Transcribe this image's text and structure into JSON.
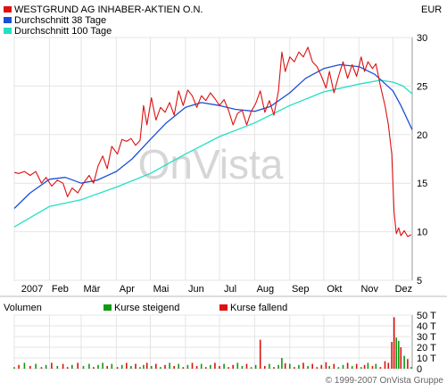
{
  "chart_data": [
    {
      "type": "line",
      "currency": "EUR",
      "x_range": [
        "2007-01-01",
        "2007-12-18"
      ],
      "x_tick_labels": [
        "2007",
        "Feb",
        "Mär",
        "Apr",
        "Mai",
        "Jun",
        "Jul",
        "Aug",
        "Sep",
        "Okt",
        "Nov",
        "Dez"
      ],
      "x_tick_dates": [
        "2007-01-01",
        "2007-02-01",
        "2007-03-01",
        "2007-04-01",
        "2007-05-01",
        "2007-06-01",
        "2007-07-01",
        "2007-08-01",
        "2007-09-01",
        "2007-10-01",
        "2007-11-01",
        "2007-12-01"
      ],
      "ylim": [
        5,
        30
      ],
      "y_ticks": [
        5,
        10,
        15,
        20,
        25,
        30
      ],
      "y_axis_side": "right",
      "grid": true,
      "legend_position": "top-left",
      "series": [
        {
          "name": "WESTGRUND AG INHABER-AKTIEN O.N.",
          "color": "#dd1111",
          "points": [
            [
              "2007-01-01",
              16.1
            ],
            [
              "2007-01-05",
              16.0
            ],
            [
              "2007-01-10",
              16.2
            ],
            [
              "2007-01-15",
              15.8
            ],
            [
              "2007-01-20",
              16.2
            ],
            [
              "2007-01-25",
              15.0
            ],
            [
              "2007-01-29",
              15.6
            ],
            [
              "2007-02-03",
              14.7
            ],
            [
              "2007-02-08",
              15.3
            ],
            [
              "2007-02-13",
              15.0
            ],
            [
              "2007-02-17",
              13.6
            ],
            [
              "2007-02-21",
              14.5
            ],
            [
              "2007-02-26",
              14.0
            ],
            [
              "2007-03-03",
              15.0
            ],
            [
              "2007-03-08",
              15.8
            ],
            [
              "2007-03-12",
              15.0
            ],
            [
              "2007-03-16",
              16.8
            ],
            [
              "2007-03-20",
              17.8
            ],
            [
              "2007-03-24",
              16.5
            ],
            [
              "2007-03-28",
              18.8
            ],
            [
              "2007-04-02",
              18.0
            ],
            [
              "2007-04-06",
              19.5
            ],
            [
              "2007-04-10",
              19.3
            ],
            [
              "2007-04-14",
              19.6
            ],
            [
              "2007-04-18",
              18.9
            ],
            [
              "2007-04-22",
              19.4
            ],
            [
              "2007-04-25",
              23.0
            ],
            [
              "2007-04-28",
              21.0
            ],
            [
              "2007-05-02",
              23.8
            ],
            [
              "2007-05-06",
              21.5
            ],
            [
              "2007-05-10",
              22.8
            ],
            [
              "2007-05-14",
              22.3
            ],
            [
              "2007-05-18",
              23.3
            ],
            [
              "2007-05-22",
              22.0
            ],
            [
              "2007-05-26",
              24.5
            ],
            [
              "2007-05-30",
              23.0
            ],
            [
              "2007-06-03",
              24.6
            ],
            [
              "2007-06-07",
              24.0
            ],
            [
              "2007-06-11",
              22.8
            ],
            [
              "2007-06-15",
              24.0
            ],
            [
              "2007-06-19",
              23.5
            ],
            [
              "2007-06-23",
              24.3
            ],
            [
              "2007-06-27",
              23.7
            ],
            [
              "2007-07-01",
              23.0
            ],
            [
              "2007-07-05",
              23.6
            ],
            [
              "2007-07-09",
              22.5
            ],
            [
              "2007-07-13",
              21.0
            ],
            [
              "2007-07-17",
              22.2
            ],
            [
              "2007-07-21",
              22.5
            ],
            [
              "2007-07-25",
              21.0
            ],
            [
              "2007-07-29",
              22.4
            ],
            [
              "2007-08-02",
              23.2
            ],
            [
              "2007-08-06",
              24.5
            ],
            [
              "2007-08-10",
              22.3
            ],
            [
              "2007-08-14",
              23.5
            ],
            [
              "2007-08-18",
              22.0
            ],
            [
              "2007-08-22",
              24.5
            ],
            [
              "2007-08-25",
              28.5
            ],
            [
              "2007-08-28",
              26.5
            ],
            [
              "2007-09-01",
              28.0
            ],
            [
              "2007-09-05",
              27.5
            ],
            [
              "2007-09-09",
              28.5
            ],
            [
              "2007-09-13",
              28.0
            ],
            [
              "2007-09-17",
              29.0
            ],
            [
              "2007-09-21",
              27.5
            ],
            [
              "2007-09-25",
              27.0
            ],
            [
              "2007-09-29",
              26.0
            ],
            [
              "2007-10-03",
              24.8
            ],
            [
              "2007-10-06",
              26.5
            ],
            [
              "2007-10-10",
              24.3
            ],
            [
              "2007-10-14",
              26.0
            ],
            [
              "2007-10-18",
              27.5
            ],
            [
              "2007-10-22",
              25.8
            ],
            [
              "2007-10-26",
              27.2
            ],
            [
              "2007-10-30",
              26.0
            ],
            [
              "2007-11-03",
              28.0
            ],
            [
              "2007-11-06",
              26.5
            ],
            [
              "2007-11-09",
              27.5
            ],
            [
              "2007-11-13",
              26.8
            ],
            [
              "2007-11-16",
              27.3
            ],
            [
              "2007-11-20",
              25.0
            ],
            [
              "2007-11-24",
              23.0
            ],
            [
              "2007-11-27",
              21.0
            ],
            [
              "2007-11-30",
              18.0
            ],
            [
              "2007-12-02",
              12.0
            ],
            [
              "2007-12-04",
              9.8
            ],
            [
              "2007-12-06",
              10.4
            ],
            [
              "2007-12-08",
              9.6
            ],
            [
              "2007-12-11",
              10.1
            ],
            [
              "2007-12-14",
              9.5
            ],
            [
              "2007-12-17",
              9.7
            ]
          ]
        },
        {
          "name": "Durchschnitt 38 Tage",
          "color": "#1a4fd8",
          "points": [
            [
              "2007-01-01",
              12.4
            ],
            [
              "2007-01-15",
              14.0
            ],
            [
              "2007-02-01",
              15.4
            ],
            [
              "2007-02-15",
              15.6
            ],
            [
              "2007-03-01",
              15.0
            ],
            [
              "2007-03-15",
              15.3
            ],
            [
              "2007-04-01",
              16.2
            ],
            [
              "2007-04-15",
              17.5
            ],
            [
              "2007-05-01",
              19.5
            ],
            [
              "2007-05-15",
              21.2
            ],
            [
              "2007-06-01",
              22.8
            ],
            [
              "2007-06-15",
              23.3
            ],
            [
              "2007-07-01",
              23.0
            ],
            [
              "2007-07-15",
              22.6
            ],
            [
              "2007-08-01",
              22.4
            ],
            [
              "2007-08-15",
              22.9
            ],
            [
              "2007-09-01",
              24.3
            ],
            [
              "2007-09-15",
              25.8
            ],
            [
              "2007-10-01",
              26.8
            ],
            [
              "2007-10-15",
              27.2
            ],
            [
              "2007-11-01",
              27.0
            ],
            [
              "2007-11-15",
              26.2
            ],
            [
              "2007-12-01",
              24.5
            ],
            [
              "2007-12-08",
              23.0
            ],
            [
              "2007-12-18",
              20.5
            ]
          ]
        },
        {
          "name": "Durchschnitt 100 Tage",
          "color": "#22e0c4",
          "points": [
            [
              "2007-01-01",
              10.5
            ],
            [
              "2007-02-01",
              12.6
            ],
            [
              "2007-03-01",
              13.3
            ],
            [
              "2007-04-01",
              14.6
            ],
            [
              "2007-05-01",
              16.0
            ],
            [
              "2007-06-01",
              18.0
            ],
            [
              "2007-07-01",
              19.8
            ],
            [
              "2007-08-01",
              21.2
            ],
            [
              "2007-09-01",
              23.0
            ],
            [
              "2007-10-01",
              24.4
            ],
            [
              "2007-11-01",
              25.2
            ],
            [
              "2007-11-20",
              25.6
            ],
            [
              "2007-12-01",
              25.4
            ],
            [
              "2007-12-10",
              25.0
            ],
            [
              "2007-12-18",
              24.2
            ]
          ]
        }
      ]
    },
    {
      "type": "bar",
      "title": "Volumen",
      "unit": "T",
      "y_ticks": [
        0,
        10,
        20,
        30,
        40,
        50
      ],
      "y_tick_labels": [
        "0",
        "10 T",
        "20 T",
        "30 T",
        "40 T",
        "50 T"
      ],
      "ylim": [
        0,
        50
      ],
      "y_axis_side": "right",
      "grid": true,
      "series": [
        {
          "name": "Kurse steigend",
          "color": "#119911"
        },
        {
          "name": "Kurse fallend",
          "color": "#dd1111"
        }
      ],
      "notable_bars": [
        {
          "date": "2007-08-25",
          "value": 10,
          "series": "Kurse steigend"
        },
        {
          "date": "2007-08-28",
          "value": 5,
          "series": "Kurse fallend"
        },
        {
          "date": "2007-08-06",
          "value": 27,
          "series": "Kurse fallend"
        },
        {
          "date": "2007-10-03",
          "value": 6,
          "series": "Kurse fallend"
        },
        {
          "date": "2007-11-24",
          "value": 7,
          "series": "Kurse fallend"
        },
        {
          "date": "2007-11-30",
          "value": 25,
          "series": "Kurse fallend"
        },
        {
          "date": "2007-12-02",
          "value": 48,
          "series": "Kurse fallend"
        },
        {
          "date": "2007-12-04",
          "value": 29,
          "series": "Kurse steigend"
        },
        {
          "date": "2007-12-06",
          "value": 26,
          "series": "Kurse steigend"
        },
        {
          "date": "2007-12-08",
          "value": 20,
          "series": "Kurse fallend"
        },
        {
          "date": "2007-12-11",
          "value": 12,
          "series": "Kurse steigend"
        },
        {
          "date": "2007-12-14",
          "value": 9,
          "series": "Kurse fallend"
        }
      ]
    }
  ],
  "watermark": "OnVista",
  "footer": "© 1999-2007 OnVista Gruppe"
}
